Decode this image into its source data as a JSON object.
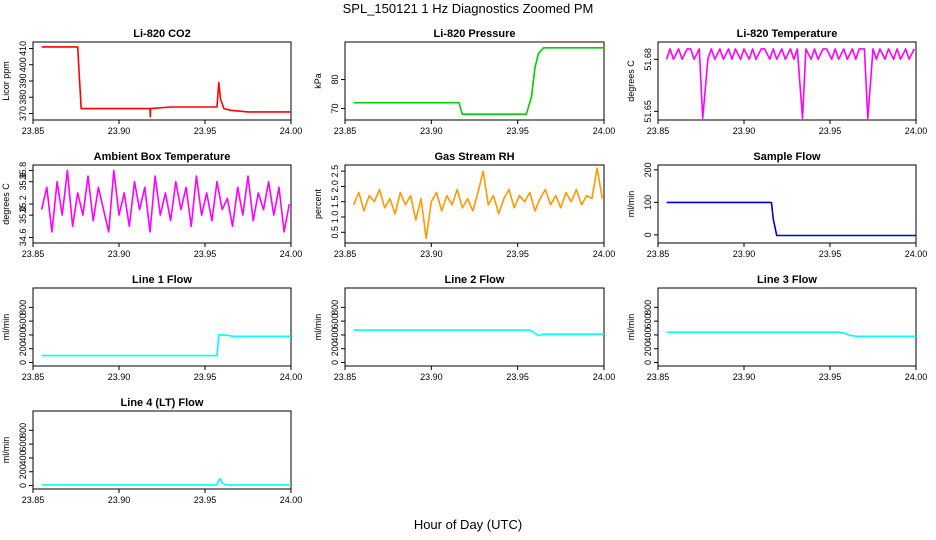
{
  "title": "SPL_150121  1 Hz Diagnostics Zoomed PM",
  "xlabel": "Hour of Day (UTC)",
  "chart_data": [
    {
      "type": "line",
      "title": "Li-820 CO2",
      "ylabel": "Licor ppm",
      "color": "#ff0000",
      "xlim": [
        23.85,
        24.0
      ],
      "xticks": [
        "23.85",
        "23.90",
        "23.95",
        "24.00"
      ],
      "ylim": [
        366,
        414
      ],
      "yticks": [
        "370",
        "380",
        "390",
        "400",
        "410"
      ],
      "series": [
        {
          "x": [
            23.855,
            23.876,
            23.877,
            23.878,
            23.9,
            23.918,
            23.9182,
            23.9184,
            23.93,
            23.957,
            23.958,
            23.959,
            23.961,
            23.965,
            23.975,
            24.0
          ],
          "values": [
            411,
            411,
            392,
            373,
            373,
            373,
            368,
            373,
            374,
            374,
            389,
            379,
            373,
            372,
            371,
            371
          ]
        }
      ]
    },
    {
      "type": "line",
      "title": "Li-820 Pressure",
      "ylabel": "kPa",
      "color": "#00cc00",
      "xlim": [
        23.85,
        24.0
      ],
      "xticks": [
        "23.85",
        "23.90",
        "23.95",
        "24.00"
      ],
      "ylim": [
        66,
        93
      ],
      "yticks": [
        "70",
        "80"
      ],
      "series": [
        {
          "x": [
            23.855,
            23.9,
            23.916,
            23.918,
            23.94,
            23.955,
            23.958,
            23.96,
            23.962,
            23.965,
            24.0
          ],
          "values": [
            72,
            72,
            72,
            68,
            68,
            68,
            74,
            84,
            89,
            91,
            91
          ]
        }
      ]
    },
    {
      "type": "line",
      "title": "Li-820 Temperature",
      "ylabel": "degrees C",
      "color": "#ff00ff",
      "xlim": [
        23.85,
        24.0
      ],
      "xticks": [
        "23.85",
        "23.90",
        "23.95",
        "24.00"
      ],
      "ylim": [
        51.645,
        51.69
      ],
      "yticks": [
        "51.65",
        "51.68"
      ],
      "series": [
        {
          "x": [
            23.855,
            23.857,
            23.859,
            23.862,
            23.864,
            23.867,
            23.869,
            23.871,
            23.874,
            23.876,
            23.879,
            23.881,
            23.883,
            23.886,
            23.888,
            23.891,
            23.893,
            23.895,
            23.898,
            23.9,
            23.903,
            23.905,
            23.907,
            23.91,
            23.912,
            23.915,
            23.917,
            23.919,
            23.922,
            23.924,
            23.927,
            23.929,
            23.931,
            23.934,
            23.936,
            23.939,
            23.941,
            23.943,
            23.946,
            23.948,
            23.951,
            23.953,
            23.955,
            23.958,
            23.96,
            23.963,
            23.965,
            23.967,
            23.97,
            23.972,
            23.975,
            23.977,
            23.979,
            23.982,
            23.984,
            23.987,
            23.989,
            23.991,
            23.994,
            23.996,
            23.999
          ],
          "values": [
            51.68,
            51.686,
            51.68,
            51.686,
            51.68,
            51.686,
            51.686,
            51.68,
            51.686,
            51.646,
            51.68,
            51.686,
            51.68,
            51.686,
            51.68,
            51.686,
            51.68,
            51.686,
            51.68,
            51.686,
            51.68,
            51.686,
            51.68,
            51.686,
            51.686,
            51.68,
            51.686,
            51.68,
            51.686,
            51.68,
            51.686,
            51.68,
            51.686,
            51.646,
            51.686,
            51.68,
            51.686,
            51.68,
            51.686,
            51.686,
            51.68,
            51.686,
            51.68,
            51.686,
            51.68,
            51.686,
            51.68,
            51.686,
            51.686,
            51.646,
            51.686,
            51.68,
            51.686,
            51.68,
            51.686,
            51.68,
            51.686,
            51.68,
            51.686,
            51.68,
            51.686
          ]
        }
      ]
    },
    {
      "type": "line",
      "title": "Ambient Box Temperature",
      "ylabel": "degrees C",
      "color": "#ff00ff",
      "xlim": [
        23.85,
        24.0
      ],
      "xticks": [
        "23.85",
        "23.90",
        "23.95",
        "24.00"
      ],
      "ylim": [
        34.5,
        35.9
      ],
      "yticks": [
        "34.6",
        "35.0",
        "35.2",
        "35.6",
        "35.8"
      ],
      "series": [
        {
          "x": [
            23.855,
            23.858,
            23.861,
            23.864,
            23.867,
            23.87,
            23.873,
            23.876,
            23.879,
            23.882,
            23.885,
            23.888,
            23.891,
            23.894,
            23.897,
            23.9,
            23.903,
            23.906,
            23.909,
            23.912,
            23.915,
            23.918,
            23.921,
            23.924,
            23.927,
            23.93,
            23.933,
            23.936,
            23.939,
            23.942,
            23.945,
            23.948,
            23.951,
            23.954,
            23.957,
            23.96,
            23.963,
            23.966,
            23.969,
            23.972,
            23.975,
            23.978,
            23.981,
            23.984,
            23.987,
            23.99,
            23.993,
            23.996,
            23.999
          ],
          "values": [
            35.1,
            35.5,
            34.7,
            35.6,
            35.0,
            35.8,
            34.8,
            35.4,
            35.0,
            35.7,
            34.9,
            35.5,
            35.1,
            34.7,
            35.8,
            35.0,
            35.4,
            34.8,
            35.6,
            35.1,
            35.5,
            34.7,
            35.7,
            35.0,
            35.4,
            34.9,
            35.6,
            35.1,
            35.5,
            34.8,
            35.7,
            35.0,
            35.4,
            34.9,
            35.6,
            35.1,
            35.3,
            34.8,
            35.5,
            35.0,
            35.7,
            34.9,
            35.4,
            35.1,
            35.6,
            35.0,
            35.5,
            34.7,
            35.2
          ]
        }
      ]
    },
    {
      "type": "line",
      "title": "Gas Stream RH",
      "ylabel": "percent",
      "color": "#ff9900",
      "xlim": [
        23.85,
        24.0
      ],
      "xticks": [
        "23.85",
        "23.90",
        "23.95",
        "24.00"
      ],
      "ylim": [
        0.15,
        2.7
      ],
      "yticks": [
        "0.5",
        "1.0",
        "1.5",
        "2.0",
        "2.5"
      ],
      "series": [
        {
          "x": [
            23.855,
            23.858,
            23.861,
            23.864,
            23.867,
            23.87,
            23.873,
            23.876,
            23.879,
            23.882,
            23.885,
            23.888,
            23.891,
            23.894,
            23.897,
            23.9,
            23.903,
            23.906,
            23.909,
            23.912,
            23.915,
            23.918,
            23.921,
            23.924,
            23.927,
            23.93,
            23.933,
            23.936,
            23.939,
            23.942,
            23.945,
            23.948,
            23.951,
            23.954,
            23.957,
            23.96,
            23.963,
            23.966,
            23.969,
            23.972,
            23.975,
            23.978,
            23.981,
            23.984,
            23.987,
            23.99,
            23.993,
            23.996,
            23.999
          ],
          "values": [
            1.4,
            1.8,
            1.2,
            1.7,
            1.5,
            1.9,
            1.3,
            1.6,
            1.1,
            1.8,
            1.4,
            1.7,
            0.9,
            1.6,
            0.3,
            1.5,
            1.8,
            1.2,
            1.7,
            1.4,
            1.9,
            1.3,
            1.6,
            1.2,
            1.8,
            2.5,
            1.4,
            1.7,
            1.1,
            1.6,
            1.9,
            1.3,
            1.7,
            1.5,
            1.8,
            1.2,
            1.6,
            1.9,
            1.4,
            1.7,
            1.3,
            1.8,
            1.5,
            1.9,
            1.4,
            1.7,
            1.6,
            2.6,
            1.6
          ]
        }
      ]
    },
    {
      "type": "line",
      "title": "Sample Flow",
      "ylabel": "ml/min",
      "color": "#0000cc",
      "xlim": [
        23.85,
        24.0
      ],
      "xticks": [
        "23.85",
        "23.90",
        "23.95",
        "24.00"
      ],
      "ylim": [
        -25,
        215
      ],
      "yticks": [
        "0",
        "100",
        "200"
      ],
      "series": [
        {
          "x": [
            23.855,
            23.9,
            23.915,
            23.916,
            23.917,
            23.919,
            23.95,
            24.0
          ],
          "values": [
            100,
            100,
            100,
            99,
            50,
            -2,
            -2,
            -2
          ]
        }
      ]
    },
    {
      "type": "line",
      "title": "Line 1 Flow",
      "ylabel": "ml/min",
      "color": "#00ffff",
      "xlim": [
        23.85,
        24.0
      ],
      "xticks": [
        "23.85",
        "23.90",
        "23.95",
        "24.00"
      ],
      "ylim": [
        -50,
        1080
      ],
      "yticks": [
        "0",
        "200",
        "400",
        "600",
        "800"
      ],
      "series": [
        {
          "x": [
            23.855,
            23.9,
            23.957,
            23.958,
            23.96,
            23.964,
            23.966,
            24.0
          ],
          "values": [
            100,
            100,
            100,
            400,
            400,
            390,
            380,
            380
          ]
        }
      ]
    },
    {
      "type": "line",
      "title": "Line 2 Flow",
      "ylabel": "ml/min",
      "color": "#00ffff",
      "xlim": [
        23.85,
        24.0
      ],
      "xticks": [
        "23.85",
        "23.90",
        "23.95",
        "24.00"
      ],
      "ylim": [
        -50,
        1080
      ],
      "yticks": [
        "0",
        "200",
        "400",
        "600",
        "800"
      ],
      "series": [
        {
          "x": [
            23.855,
            23.9,
            23.957,
            23.958,
            23.962,
            23.965,
            24.0
          ],
          "values": [
            470,
            470,
            470,
            460,
            390,
            410,
            410
          ]
        }
      ]
    },
    {
      "type": "line",
      "title": "Line 3 Flow",
      "ylabel": "ml/min",
      "color": "#00ffff",
      "xlim": [
        23.85,
        24.0
      ],
      "xticks": [
        "23.85",
        "23.90",
        "23.95",
        "24.00"
      ],
      "ylim": [
        -50,
        1080
      ],
      "yticks": [
        "0",
        "200",
        "400",
        "600",
        "800"
      ],
      "series": [
        {
          "x": [
            23.855,
            23.9,
            23.955,
            23.958,
            23.962,
            23.966,
            24.0
          ],
          "values": [
            440,
            440,
            440,
            430,
            390,
            380,
            380
          ]
        }
      ]
    },
    {
      "type": "line",
      "title": "Line 4 (LT) Flow",
      "ylabel": "ml/min",
      "color": "#00ffff",
      "xlim": [
        23.85,
        24.0
      ],
      "xticks": [
        "23.85",
        "23.90",
        "23.95",
        "24.00"
      ],
      "ylim": [
        -50,
        1080
      ],
      "yticks": [
        "0",
        "200",
        "400",
        "600",
        "800"
      ],
      "series": [
        {
          "x": [
            23.855,
            23.9,
            23.957,
            23.958,
            23.959,
            23.96,
            23.962,
            24.0
          ],
          "values": [
            10,
            10,
            10,
            80,
            100,
            40,
            10,
            10
          ]
        }
      ]
    }
  ]
}
